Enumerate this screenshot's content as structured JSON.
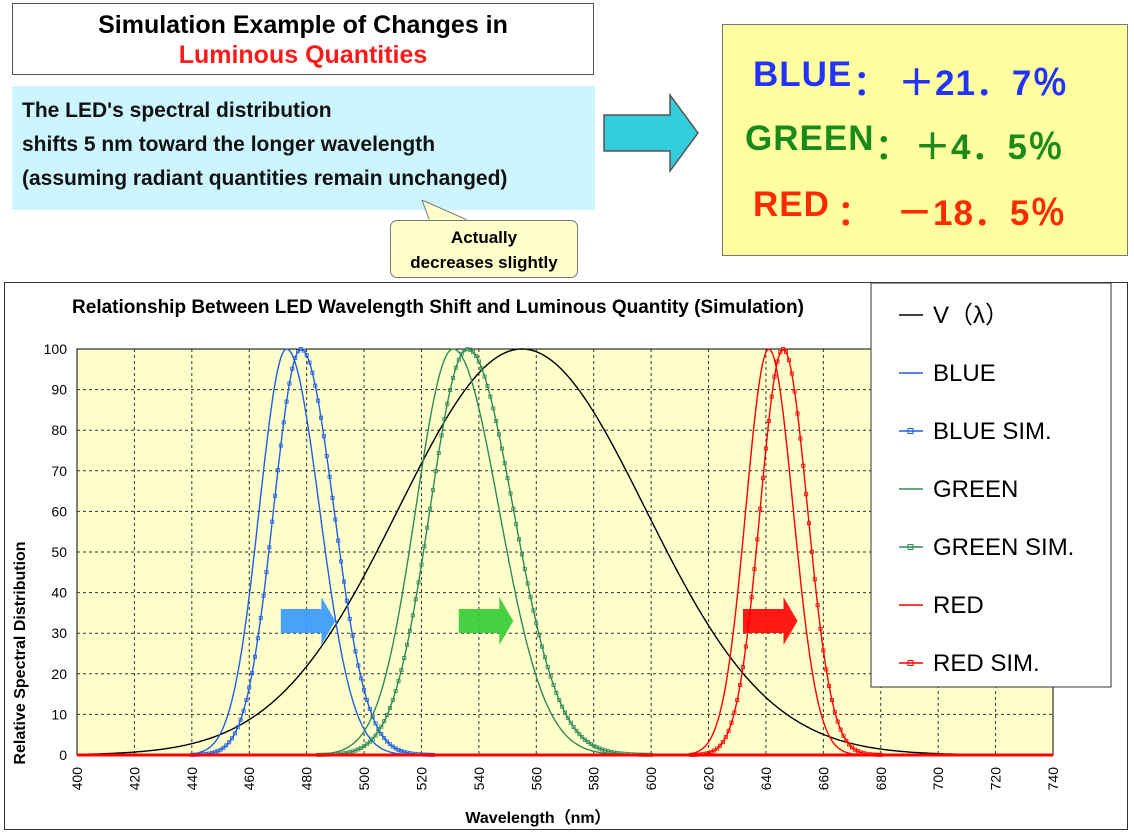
{
  "header": {
    "title_line1": "Simulation Example of Changes in",
    "title_line2": "Luminous Quantities",
    "title_line2_color": "#ff1a1a"
  },
  "description": {
    "line1": "The LED's spectral distribution",
    "line2": "shifts 5 nm toward the longer wavelength",
    "line3": "(assuming radiant quantities remain unchanged)"
  },
  "callout": {
    "line1": "Actually",
    "line2": "decreases slightly"
  },
  "results": [
    {
      "label": "BLUE",
      "sep": "：",
      "value": "＋21．7％",
      "color": "#2233ff"
    },
    {
      "label": "GREEN",
      "sep": "：",
      "value": "＋4．5％",
      "color": "#1a8a1a"
    },
    {
      "label": "RED",
      "sep": "：",
      "value": "－18．5％",
      "color": "#ff2a00"
    }
  ],
  "chart_data": {
    "type": "line",
    "title": "Relationship Between LED Wavelength Shift and Luminous Quantity (Simulation)",
    "xlabel": "Wavelength（nm）",
    "ylabel": "Relative Spectral Distribution",
    "xlim": [
      400,
      740
    ],
    "ylim": [
      0,
      100
    ],
    "xticks": [
      400,
      420,
      440,
      460,
      480,
      500,
      520,
      540,
      560,
      580,
      600,
      620,
      640,
      660,
      680,
      700,
      720,
      740
    ],
    "yticks": [
      0,
      10,
      20,
      30,
      40,
      50,
      60,
      70,
      80,
      90,
      100
    ],
    "grid": true,
    "legend_position": "right",
    "series": [
      {
        "name": "V（λ）",
        "color": "#000000",
        "marker": false,
        "type": "gaussian",
        "peak_nm": 555,
        "sigma_left": 43,
        "sigma_right": 43
      },
      {
        "name": "BLUE",
        "color": "#1f5fe0",
        "marker": false,
        "type": "gaussian",
        "peak_nm": 473,
        "sigma_left": 9.5,
        "sigma_right": 11.5
      },
      {
        "name": "BLUE SIM.",
        "color": "#1f5fe0",
        "marker": true,
        "type": "gaussian",
        "peak_nm": 478,
        "sigma_left": 9.5,
        "sigma_right": 11.5
      },
      {
        "name": "GREEN",
        "color": "#2e8b57",
        "marker": false,
        "type": "gaussian",
        "peak_nm": 531,
        "sigma_left": 13,
        "sigma_right": 16
      },
      {
        "name": "GREEN SIM.",
        "color": "#2e8b57",
        "marker": true,
        "type": "gaussian",
        "peak_nm": 536,
        "sigma_left": 13,
        "sigma_right": 16
      },
      {
        "name": "RED",
        "color": "#ff0000",
        "marker": false,
        "type": "gaussian",
        "peak_nm": 641,
        "sigma_left": 8,
        "sigma_right": 8.5
      },
      {
        "name": "RED SIM.",
        "color": "#ff0000",
        "marker": true,
        "type": "gaussian",
        "peak_nm": 646,
        "sigma_left": 8,
        "sigma_right": 8.5
      }
    ],
    "shift_arrows": [
      {
        "name": "blue-shift-arrow",
        "x_from": 471,
        "x_to": 490,
        "y": 33,
        "color": "#3399ff"
      },
      {
        "name": "green-shift-arrow",
        "x_from": 533,
        "x_to": 552,
        "y": 33,
        "color": "#33cc33"
      },
      {
        "name": "red-shift-arrow",
        "x_from": 632,
        "x_to": 651,
        "y": 33,
        "color": "#ff0000"
      }
    ],
    "plot_background": "#ffffcc"
  }
}
